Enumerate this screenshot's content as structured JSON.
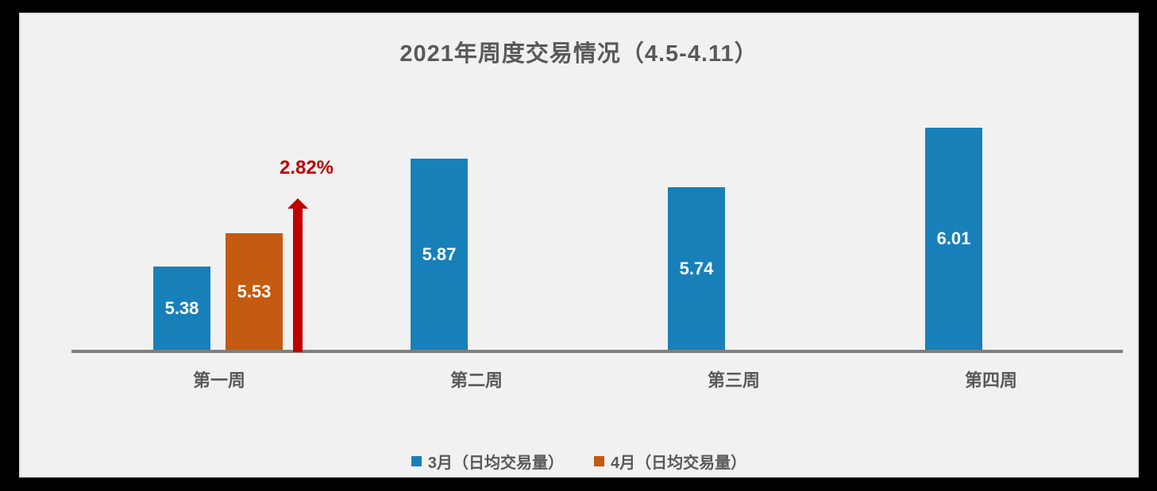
{
  "title": "2021年周度交易情况（4.5-4.11）",
  "colors": {
    "blue": "#1880B9",
    "orange": "#C55A11",
    "red": "#C00000",
    "axis": "#7F7F7F",
    "text": "#595959",
    "panel-bg": "#F1F1F1",
    "panel-border": "#E0E0E0",
    "canvas": "#000000"
  },
  "chart_data": {
    "type": "bar",
    "title": "2021年周度交易情况（4.5-4.11）",
    "categories": [
      "第一周",
      "第二周",
      "第三周",
      "第四周"
    ],
    "series": [
      {
        "name": "3月（日均交易量）",
        "color": "#1880B9",
        "values": [
          5.38,
          5.87,
          5.74,
          6.01
        ]
      },
      {
        "name": "4月（日均交易量）",
        "color": "#C55A11",
        "values": [
          5.53,
          null,
          null,
          null
        ]
      }
    ],
    "annotations": [
      {
        "category": "第一周",
        "text": "2.82%",
        "type": "increase-arrow",
        "color": "#C00000"
      }
    ],
    "value_labels": true,
    "baseline_value": 5.0,
    "ylim": [
      5.0,
      6.2
    ],
    "grid": false,
    "axes_shown": "x-only",
    "legend_position": "bottom-center"
  }
}
